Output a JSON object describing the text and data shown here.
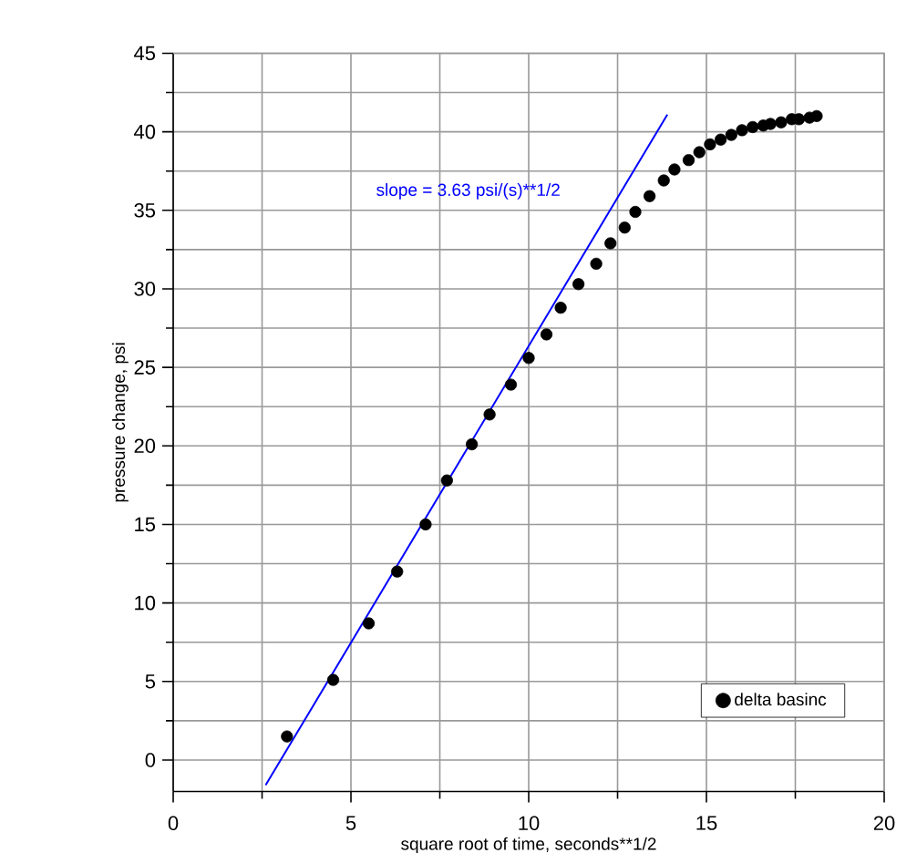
{
  "chart_data": {
    "type": "scatter",
    "xlabel": "square root of time, seconds**1/2",
    "ylabel": "pressure change, psi",
    "xlim": [
      0,
      20
    ],
    "ylim": [
      -2,
      45
    ],
    "xticks": [
      0,
      5,
      10,
      15,
      20
    ],
    "yticks": [
      0,
      5,
      10,
      15,
      20,
      25,
      30,
      35,
      40,
      45
    ],
    "grid": true,
    "legend": "bottom right",
    "annotations": [
      "slope = 3.63 psi/(s)**1/2"
    ],
    "series": [
      {
        "name": "delta basinc",
        "color": "#000000",
        "marker": "circle",
        "x": [
          3.2,
          4.5,
          5.5,
          6.3,
          7.1,
          7.7,
          8.4,
          8.9,
          9.5,
          10.0,
          10.5,
          10.9,
          11.4,
          11.9,
          12.3,
          12.7,
          13.0,
          13.4,
          13.8,
          14.1,
          14.5,
          14.8,
          15.1,
          15.4,
          15.7,
          16.0,
          16.3,
          16.6,
          16.8,
          17.1,
          17.4,
          17.6,
          17.9,
          18.1
        ],
        "values": [
          1.5,
          5.1,
          8.7,
          12.0,
          15.0,
          17.8,
          20.1,
          22.0,
          23.9,
          25.6,
          27.1,
          28.8,
          30.3,
          31.6,
          32.9,
          33.9,
          34.9,
          35.9,
          36.9,
          37.6,
          38.2,
          38.7,
          39.2,
          39.5,
          39.8,
          40.1,
          40.3,
          40.4,
          40.5,
          40.6,
          40.8,
          40.8,
          40.9,
          41.0
        ]
      },
      {
        "type": "line",
        "color": "#0000ff",
        "line_style": "solid",
        "marker": "none",
        "x": [
          2.6,
          13.9
        ],
        "values": [
          -1.6,
          41.1
        ]
      }
    ]
  }
}
